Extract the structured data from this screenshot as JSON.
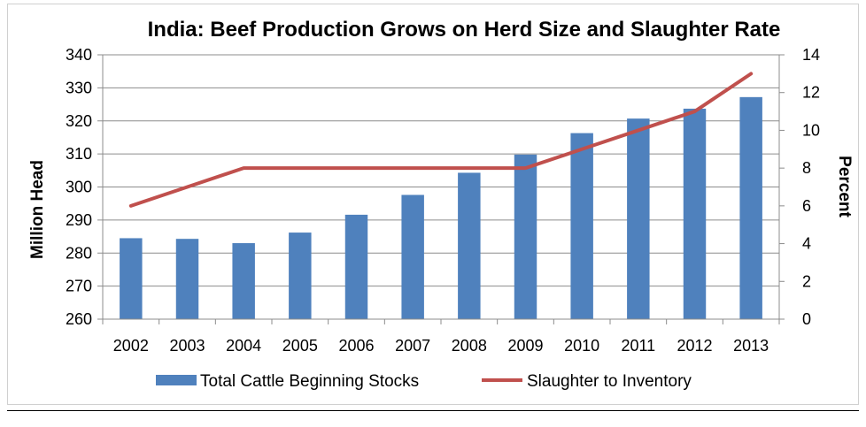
{
  "chart_data": {
    "type": "bar",
    "title": "India: Beef Production Grows on Herd Size and Slaughter Rate",
    "categories": [
      "2002",
      "2003",
      "2004",
      "2005",
      "2006",
      "2007",
      "2008",
      "2009",
      "2010",
      "2011",
      "2012",
      "2013"
    ],
    "series": [
      {
        "name": "Total Cattle Beginning Stocks",
        "type": "bar",
        "axis": "left",
        "color": "#4F81BD",
        "values": [
          284.5,
          284.3,
          283.0,
          286.2,
          291.6,
          297.6,
          304.3,
          309.8,
          316.3,
          320.7,
          323.7,
          327.2
        ]
      },
      {
        "name": "Slaughter to Inventory",
        "type": "line",
        "axis": "right",
        "color": "#C0504D",
        "values": [
          6,
          7,
          8,
          8,
          8,
          8,
          8,
          8,
          9,
          10,
          11,
          13
        ]
      }
    ],
    "left_axis": {
      "label": "Million Head",
      "min": 260,
      "max": 340,
      "ticks": [
        260,
        270,
        280,
        290,
        300,
        310,
        320,
        330,
        340
      ]
    },
    "right_axis": {
      "label": "Percent",
      "min": 0,
      "max": 14,
      "ticks": [
        0,
        2,
        4,
        6,
        8,
        10,
        12,
        14
      ]
    },
    "grid": true,
    "legend": "bottom"
  }
}
